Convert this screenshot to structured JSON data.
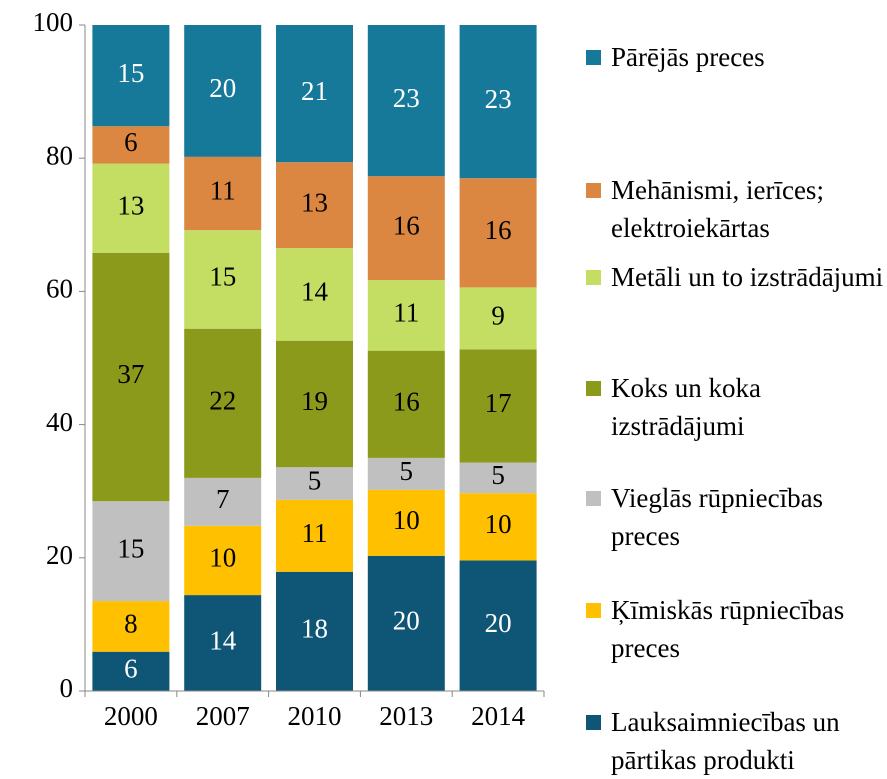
{
  "chart_data": {
    "type": "stacked_bar",
    "categories": [
      "2000",
      "2007",
      "2010",
      "2013",
      "2014"
    ],
    "series": [
      {
        "name": "Lauksaimniecības un pārtikas produkti",
        "color": "#0f5676",
        "values": [
          5.9,
          14.4,
          17.9,
          20.3,
          19.6
        ],
        "value_labels": [
          "6",
          "14",
          "18",
          "20",
          "20"
        ]
      },
      {
        "name": "Ķīmiskās rūpniecības preces",
        "color": "#ffc000",
        "values": [
          7.6,
          10.4,
          10.8,
          9.9,
          10.1
        ],
        "value_labels": [
          "8",
          "10",
          "11",
          "10",
          "10"
        ]
      },
      {
        "name": "Vieglās rūpniecības preces",
        "color": "#c0c0c0",
        "values": [
          15.0,
          7.2,
          4.9,
          4.8,
          4.6
        ],
        "value_labels": [
          "15",
          "7",
          "5",
          "5",
          "5"
        ]
      },
      {
        "name": "Koks un koka izstrādājumi",
        "color": "#8c9a1c",
        "values": [
          37.3,
          22.4,
          19.0,
          16.1,
          17.0
        ],
        "value_labels": [
          "37",
          "22",
          "19",
          "16",
          "17"
        ]
      },
      {
        "name": "Metāli un to izstrādājumi",
        "color": "#c4de64",
        "values": [
          13.4,
          14.8,
          13.9,
          10.6,
          9.3
        ],
        "value_labels": [
          "13",
          "15",
          "14",
          "11",
          "9"
        ]
      },
      {
        "name": "Mehānismi, ierīces; elektroiekārtas",
        "color": "#db8742",
        "values": [
          5.6,
          11.0,
          12.9,
          15.6,
          16.4
        ],
        "value_labels": [
          "6",
          "11",
          "13",
          "16",
          "16"
        ]
      },
      {
        "name": "Pārējās preces",
        "color": "#17799a",
        "values": [
          15.2,
          19.8,
          20.6,
          22.7,
          23.0
        ],
        "value_labels": [
          "15",
          "20",
          "21",
          "23",
          "23"
        ]
      }
    ],
    "ylim": [
      0,
      100
    ],
    "yticks": [
      0,
      20,
      40,
      60,
      80,
      100
    ],
    "legend": "right"
  }
}
